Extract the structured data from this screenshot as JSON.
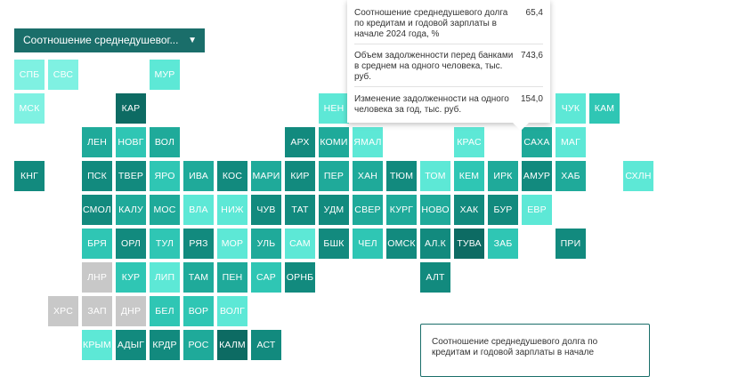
{
  "dropdown": {
    "label": "Соотношение среднедушевог...",
    "caret": "▼"
  },
  "colors": {
    "light": "#5de8d6",
    "mid": "#2fc6b4",
    "teal": "#1faa9a",
    "dark": "#128a7e",
    "darker": "#0d6b63",
    "grey": "#c8c8c8",
    "pale": "#7ff1e2"
  },
  "regions": [
    {
      "code": "СПБ",
      "c": 0,
      "r": 0,
      "color": "pale"
    },
    {
      "code": "СВС",
      "c": 1,
      "r": 0,
      "color": "pale"
    },
    {
      "code": "МУР",
      "c": 4,
      "r": 0,
      "color": "light"
    },
    {
      "code": "МСК",
      "c": 0,
      "r": 1,
      "color": "pale"
    },
    {
      "code": "КАР",
      "c": 3,
      "r": 1,
      "color": "darker"
    },
    {
      "code": "НЕН",
      "c": 9,
      "r": 1,
      "color": "light"
    },
    {
      "code": "ЧУК",
      "c": 16,
      "r": 1,
      "color": "light"
    },
    {
      "code": "КАМ",
      "c": 17,
      "r": 1,
      "color": "mid"
    },
    {
      "code": "ЛЕН",
      "c": 2,
      "r": 2,
      "color": "teal"
    },
    {
      "code": "НОВГ",
      "c": 3,
      "r": 2,
      "color": "mid"
    },
    {
      "code": "ВОЛ",
      "c": 4,
      "r": 2,
      "color": "teal"
    },
    {
      "code": "АРХ",
      "c": 8,
      "r": 2,
      "color": "dark"
    },
    {
      "code": "КОМИ",
      "c": 9,
      "r": 2,
      "color": "teal"
    },
    {
      "code": "ЯМАЛ",
      "c": 10,
      "r": 2,
      "color": "light"
    },
    {
      "code": "КРАС",
      "c": 13,
      "r": 2,
      "color": "light"
    },
    {
      "code": "САХА",
      "c": 15,
      "r": 2,
      "color": "teal"
    },
    {
      "code": "МАГ",
      "c": 16,
      "r": 2,
      "color": "light"
    },
    {
      "code": "КНГ",
      "c": 0,
      "r": 3,
      "color": "dark"
    },
    {
      "code": "ПСК",
      "c": 2,
      "r": 3,
      "color": "dark"
    },
    {
      "code": "ТВЕР",
      "c": 3,
      "r": 3,
      "color": "dark"
    },
    {
      "code": "ЯРО",
      "c": 4,
      "r": 3,
      "color": "mid"
    },
    {
      "code": "ИВА",
      "c": 5,
      "r": 3,
      "color": "teal"
    },
    {
      "code": "КОС",
      "c": 6,
      "r": 3,
      "color": "dark"
    },
    {
      "code": "МАРИ",
      "c": 7,
      "r": 3,
      "color": "teal"
    },
    {
      "code": "КИР",
      "c": 8,
      "r": 3,
      "color": "dark"
    },
    {
      "code": "ПЕР",
      "c": 9,
      "r": 3,
      "color": "teal"
    },
    {
      "code": "ХАН",
      "c": 10,
      "r": 3,
      "color": "teal"
    },
    {
      "code": "ТЮМ",
      "c": 11,
      "r": 3,
      "color": "dark"
    },
    {
      "code": "ТОМ",
      "c": 12,
      "r": 3,
      "color": "light"
    },
    {
      "code": "КЕМ",
      "c": 13,
      "r": 3,
      "color": "mid"
    },
    {
      "code": "ИРК",
      "c": 14,
      "r": 3,
      "color": "teal"
    },
    {
      "code": "АМУР",
      "c": 15,
      "r": 3,
      "color": "dark"
    },
    {
      "code": "ХАБ",
      "c": 16,
      "r": 3,
      "color": "teal"
    },
    {
      "code": "СХЛН",
      "c": 18,
      "r": 3,
      "color": "light"
    },
    {
      "code": "СМОЛ",
      "c": 2,
      "r": 4,
      "color": "dark"
    },
    {
      "code": "КАЛУ",
      "c": 3,
      "r": 4,
      "color": "teal"
    },
    {
      "code": "МОС",
      "c": 4,
      "r": 4,
      "color": "teal"
    },
    {
      "code": "ВЛА",
      "c": 5,
      "r": 4,
      "color": "light"
    },
    {
      "code": "НИЖ",
      "c": 6,
      "r": 4,
      "color": "light"
    },
    {
      "code": "ЧУВ",
      "c": 7,
      "r": 4,
      "color": "dark"
    },
    {
      "code": "ТАТ",
      "c": 8,
      "r": 4,
      "color": "dark"
    },
    {
      "code": "УДМ",
      "c": 9,
      "r": 4,
      "color": "dark"
    },
    {
      "code": "СВЕР",
      "c": 10,
      "r": 4,
      "color": "teal"
    },
    {
      "code": "КУРГ",
      "c": 11,
      "r": 4,
      "color": "teal"
    },
    {
      "code": "НОВО",
      "c": 12,
      "r": 4,
      "color": "teal"
    },
    {
      "code": "ХАК",
      "c": 13,
      "r": 4,
      "color": "dark"
    },
    {
      "code": "БУР",
      "c": 14,
      "r": 4,
      "color": "dark"
    },
    {
      "code": "ЕВР",
      "c": 15,
      "r": 4,
      "color": "light"
    },
    {
      "code": "БРЯ",
      "c": 2,
      "r": 5,
      "color": "mid"
    },
    {
      "code": "ОРЛ",
      "c": 3,
      "r": 5,
      "color": "dark"
    },
    {
      "code": "ТУЛ",
      "c": 4,
      "r": 5,
      "color": "mid"
    },
    {
      "code": "РЯЗ",
      "c": 5,
      "r": 5,
      "color": "dark"
    },
    {
      "code": "МОР",
      "c": 6,
      "r": 5,
      "color": "light"
    },
    {
      "code": "УЛЬ",
      "c": 7,
      "r": 5,
      "color": "teal"
    },
    {
      "code": "САМ",
      "c": 8,
      "r": 5,
      "color": "light"
    },
    {
      "code": "БШК",
      "c": 9,
      "r": 5,
      "color": "dark"
    },
    {
      "code": "ЧЕЛ",
      "c": 10,
      "r": 5,
      "color": "mid"
    },
    {
      "code": "ОМСК",
      "c": 11,
      "r": 5,
      "color": "dark"
    },
    {
      "code": "АЛ.К",
      "c": 12,
      "r": 5,
      "color": "dark"
    },
    {
      "code": "ТУВА",
      "c": 13,
      "r": 5,
      "color": "darker"
    },
    {
      "code": "ЗАБ",
      "c": 14,
      "r": 5,
      "color": "mid"
    },
    {
      "code": "ПРИ",
      "c": 16,
      "r": 5,
      "color": "dark"
    },
    {
      "code": "ЛНР",
      "c": 2,
      "r": 6,
      "color": "grey"
    },
    {
      "code": "КУР",
      "c": 3,
      "r": 6,
      "color": "mid"
    },
    {
      "code": "ЛИП",
      "c": 4,
      "r": 6,
      "color": "light"
    },
    {
      "code": "ТАМ",
      "c": 5,
      "r": 6,
      "color": "teal"
    },
    {
      "code": "ПЕН",
      "c": 6,
      "r": 6,
      "color": "teal"
    },
    {
      "code": "САР",
      "c": 7,
      "r": 6,
      "color": "mid"
    },
    {
      "code": "ОРНБ",
      "c": 8,
      "r": 6,
      "color": "dark"
    },
    {
      "code": "АЛТ",
      "c": 12,
      "r": 6,
      "color": "dark"
    },
    {
      "code": "ХРС",
      "c": 1,
      "r": 7,
      "color": "grey"
    },
    {
      "code": "ЗАП",
      "c": 2,
      "r": 7,
      "color": "grey"
    },
    {
      "code": "ДНР",
      "c": 3,
      "r": 7,
      "color": "grey"
    },
    {
      "code": "БЕЛ",
      "c": 4,
      "r": 7,
      "color": "mid"
    },
    {
      "code": "ВОР",
      "c": 5,
      "r": 7,
      "color": "mid"
    },
    {
      "code": "ВОЛГ",
      "c": 6,
      "r": 7,
      "color": "light"
    },
    {
      "code": "КРЫМ",
      "c": 2,
      "r": 8,
      "color": "light"
    },
    {
      "code": "АДЫГ",
      "c": 3,
      "r": 8,
      "color": "dark"
    },
    {
      "code": "КРДР",
      "c": 4,
      "r": 8,
      "color": "dark"
    },
    {
      "code": "РОС",
      "c": 5,
      "r": 8,
      "color": "teal"
    },
    {
      "code": "КАЛМ",
      "c": 6,
      "r": 8,
      "color": "darker"
    },
    {
      "code": "АСТ",
      "c": 7,
      "r": 8,
      "color": "dark"
    }
  ],
  "tooltip": {
    "rows": [
      {
        "label": "Соотношение среднедушевого долга по кредитам и годовой зарплаты в начале 2024 года, %",
        "value": "65,4"
      },
      {
        "label": "Объем задолженности перед банками в среднем на одного человека, тыс. руб.",
        "value": "743,6"
      },
      {
        "label": "Изменение задолженности на одного человека за год, тыс. руб.",
        "value": "154,0"
      }
    ]
  },
  "legend": {
    "title": "Соотношение среднедушевого долга по кредитам и годовой зарплаты в начале"
  }
}
